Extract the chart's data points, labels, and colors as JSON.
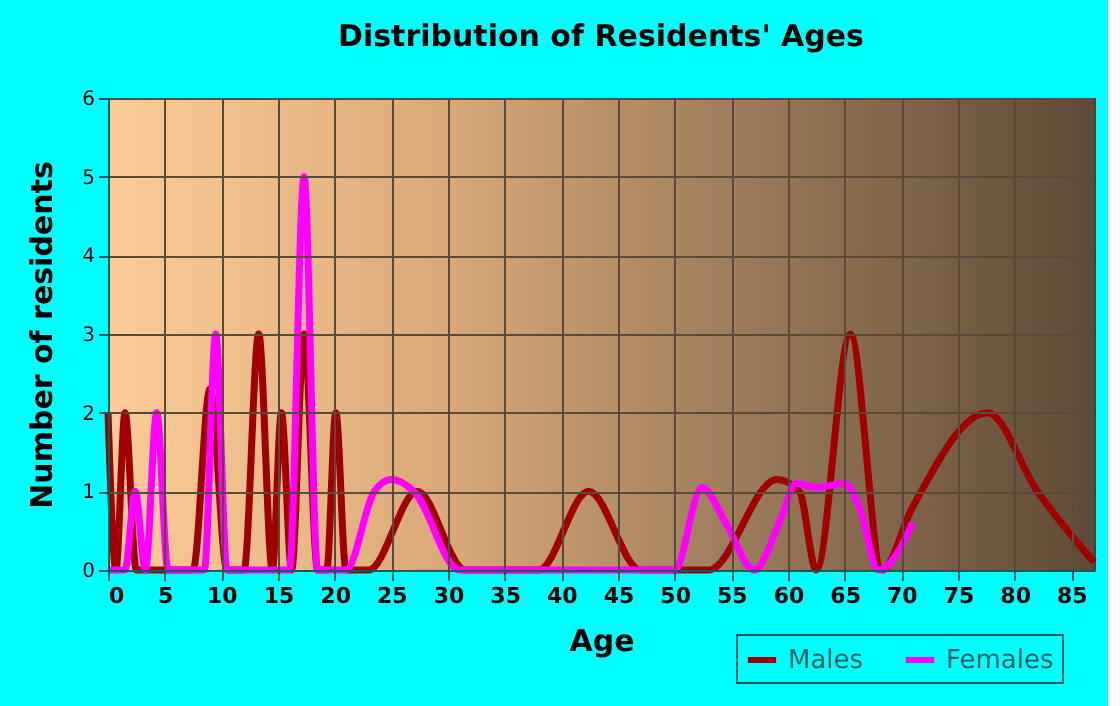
{
  "chart_data": {
    "type": "line",
    "title": "Distribution of Residents' Ages",
    "xlabel": "Age",
    "ylabel": "Number of residents",
    "xlim": [
      0,
      87
    ],
    "xticks": [
      0,
      5,
      10,
      15,
      20,
      25,
      30,
      35,
      40,
      45,
      50,
      55,
      60,
      65,
      70,
      75,
      80,
      85
    ],
    "ylim": [
      0,
      6
    ],
    "yticks": [
      0,
      1,
      2,
      3,
      4,
      5,
      6
    ],
    "grid": true,
    "legend": "bottom right",
    "marker": "none",
    "line_style": "solid",
    "series": [
      {
        "name": "Males",
        "color": "#a00000",
        "x": [
          0,
          0.7,
          1.5,
          2.5,
          7.5,
          9,
          10.5,
          12,
          13.3,
          14.5,
          15.3,
          16.2,
          17.3,
          18.5,
          19.3,
          20.1,
          21,
          23,
          27.3,
          31.5,
          38,
          42.4,
          47,
          53,
          59,
          61,
          62.5,
          65.5,
          68.3,
          71,
          77.6,
          82,
          87
        ],
        "values": [
          2,
          0,
          2,
          0,
          0,
          2.3,
          0,
          0,
          3,
          0,
          2,
          0,
          3,
          0,
          0,
          2,
          0,
          0,
          1,
          0,
          0,
          1,
          0,
          0,
          1.15,
          1,
          0,
          3,
          0,
          0.8,
          2,
          1,
          0.1
        ]
      },
      {
        "name": "Females",
        "color": "#ff00ff",
        "x": [
          0,
          1.5,
          2.4,
          3.3,
          4.3,
          5.3,
          8.5,
          9.5,
          10.5,
          16,
          17.3,
          18.5,
          21,
          23.5,
          25,
          27,
          31,
          50,
          52.4,
          54.5,
          57,
          59.5,
          60.7,
          62.5,
          65,
          66.3,
          68,
          70,
          71
        ],
        "values": [
          0,
          0,
          1,
          0,
          2,
          0,
          0,
          3,
          0,
          0,
          5,
          0,
          0,
          1,
          1.15,
          1,
          0,
          0,
          1.05,
          0.6,
          0,
          0.7,
          1.1,
          1.05,
          1.1,
          0.8,
          0,
          0.3,
          0.6
        ]
      }
    ]
  }
}
